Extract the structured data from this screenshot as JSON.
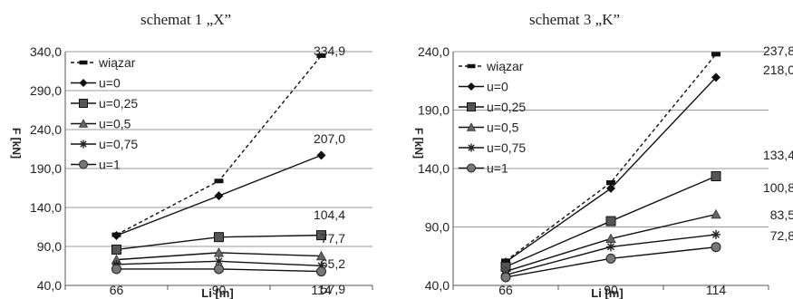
{
  "chart_data": [
    {
      "type": "line",
      "title": "schemat 1 „X”",
      "xlabel": "Li [m]",
      "ylabel": "F [kN]",
      "categories": [
        "66",
        "90",
        "114"
      ],
      "yticks": [
        "40,0",
        "90,0",
        "140,0",
        "190,0",
        "240,0",
        "290,0",
        "340,0"
      ],
      "ylim": [
        40,
        340
      ],
      "grid": true,
      "legend": "top-left",
      "series": [
        {
          "name": "wiązar",
          "values": [
            105,
            174,
            334.9
          ],
          "marker": "dash",
          "dashed": true
        },
        {
          "name": "u=0",
          "values": [
            104,
            155,
            207.0
          ],
          "marker": "diamond"
        },
        {
          "name": "u=0,25",
          "values": [
            86,
            102,
            104.4
          ],
          "marker": "square"
        },
        {
          "name": "u=0,5",
          "values": [
            73,
            82,
            77.7
          ],
          "marker": "triangle"
        },
        {
          "name": "u=0,75",
          "values": [
            67,
            71,
            65.2
          ],
          "marker": "star"
        },
        {
          "name": "u=1",
          "values": [
            61,
            61,
            57.9
          ],
          "marker": "circle"
        }
      ],
      "data_labels": [
        "334,9",
        "207,0",
        "104,4",
        "77,7",
        "65,2",
        "57,9"
      ]
    },
    {
      "type": "line",
      "title": "schemat 3 „K”",
      "xlabel": "Li [m]",
      "ylabel": "F [kN]",
      "categories": [
        "66",
        "90",
        "114"
      ],
      "yticks": [
        "40,0",
        "90,0",
        "140,0",
        "190,0",
        "240,0"
      ],
      "ylim": [
        40,
        240
      ],
      "grid": true,
      "legend": "top-left",
      "series": [
        {
          "name": "wiązar",
          "values": [
            61,
            128,
            237.8
          ],
          "marker": "dash",
          "dashed": true
        },
        {
          "name": "u=0",
          "values": [
            60,
            123,
            218.0
          ],
          "marker": "diamond"
        },
        {
          "name": "u=0,25",
          "values": [
            56,
            95,
            133.4
          ],
          "marker": "square"
        },
        {
          "name": "u=0,5",
          "values": [
            52,
            80,
            100.8
          ],
          "marker": "triangle"
        },
        {
          "name": "u=0,75",
          "values": [
            49,
            73,
            83.5
          ],
          "marker": "star"
        },
        {
          "name": "u=1",
          "values": [
            47,
            63,
            72.8
          ],
          "marker": "circle"
        }
      ],
      "data_labels": [
        "237,8",
        "218,0",
        "133,4",
        "100,8",
        "83,5",
        "72,8"
      ]
    }
  ]
}
